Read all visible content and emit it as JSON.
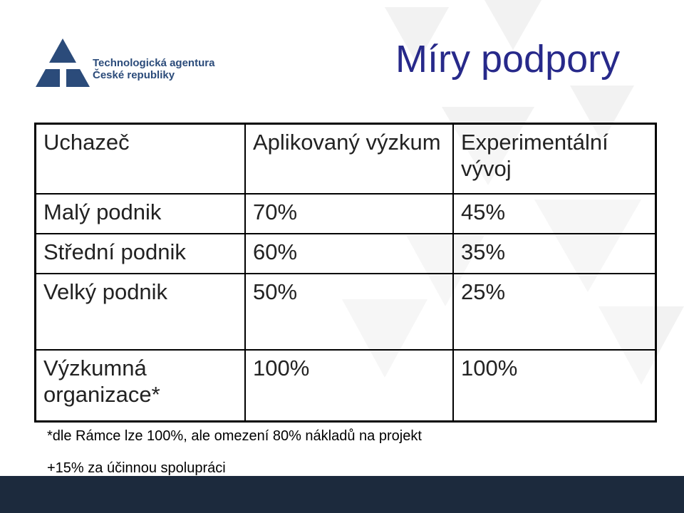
{
  "logo": {
    "text_line1": "Technologická agentura",
    "text_line2": "České republiky"
  },
  "title": "Míry podpory",
  "table": {
    "headers": [
      "Uchazeč",
      "Aplikovaný výzkum",
      "Experimentální vývoj"
    ],
    "rows": [
      [
        "Malý podnik",
        "70%",
        "45%"
      ],
      [
        "Střední podnik",
        "60%",
        "35%"
      ],
      [
        "Velký podnik",
        "50%",
        "25%"
      ],
      [
        "Výzkumná organizace*",
        "100%",
        "100%"
      ]
    ]
  },
  "notes": [
    "*dle Rámce lze 100%, ale omezení 80% nákladů na projekt",
    "+15% za účinnou spolupráci"
  ],
  "colors": {
    "title": "#27298a",
    "logo": "#2b4b7a",
    "footer_bar": "#1c2a3d"
  }
}
